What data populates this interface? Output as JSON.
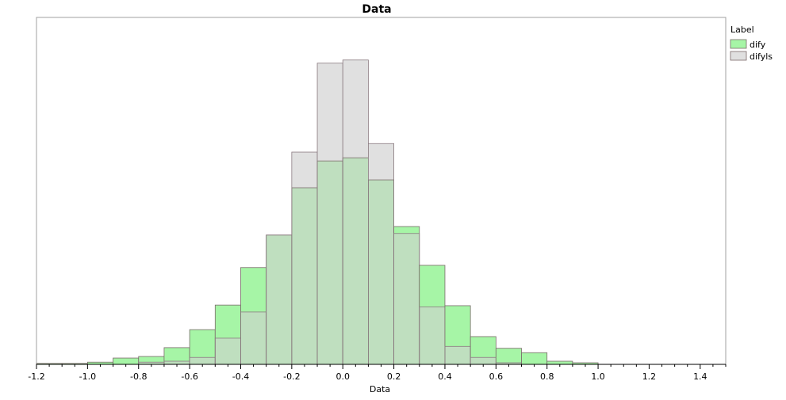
{
  "chart_data": {
    "type": "bar",
    "title": "Data",
    "xlabel": "Data",
    "ylabel": "",
    "xlim": [
      -1.2,
      1.5
    ],
    "ylim": [
      0,
      11
    ],
    "bin_width": 0.1,
    "bin_starts": [
      -1.2,
      -1.1,
      -1.0,
      -0.9,
      -0.8,
      -0.7,
      -0.6,
      -0.5,
      -0.4,
      -0.3,
      -0.2,
      -0.1,
      0.0,
      0.1,
      0.2,
      0.3,
      0.4,
      0.5,
      0.6,
      0.7,
      0.8,
      0.9,
      1.0,
      1.1,
      1.2,
      1.3
    ],
    "x_ticks": [
      "-1.2",
      "-1.0",
      "-0.8",
      "-0.6",
      "-0.4",
      "-0.2",
      "0.0",
      "0.2",
      "0.4",
      "0.6",
      "0.8",
      "1.0",
      "1.2",
      "1.4"
    ],
    "x_tick_values": [
      -1.2,
      -1.0,
      -0.8,
      -0.6,
      -0.4,
      -0.2,
      0.0,
      0.2,
      0.4,
      0.6,
      0.8,
      1.0,
      1.2,
      1.4
    ],
    "series": [
      {
        "name": "dify",
        "color": "#a6f5a6",
        "values": [
          0.03,
          0.03,
          0.07,
          0.2,
          0.25,
          0.53,
          1.1,
          1.88,
          3.07,
          4.1,
          5.6,
          6.45,
          6.55,
          5.85,
          4.37,
          3.14,
          1.86,
          0.88,
          0.51,
          0.37,
          0.1,
          0.05,
          0.0,
          0.0,
          0.0,
          0.0
        ]
      },
      {
        "name": "difyls",
        "color": "#e0e0e0",
        "values": [
          0.0,
          0.0,
          0.0,
          0.0,
          0.07,
          0.1,
          0.22,
          0.83,
          1.66,
          4.1,
          6.73,
          9.55,
          9.65,
          7.0,
          4.15,
          1.82,
          0.57,
          0.22,
          0.05,
          0.0,
          0.0,
          0.0,
          0.0,
          0.0,
          0.0,
          0.0
        ]
      }
    ],
    "overlap_color": "#bfdfbf",
    "legend": {
      "title": "Label",
      "position": "top-right"
    },
    "grid": false
  }
}
